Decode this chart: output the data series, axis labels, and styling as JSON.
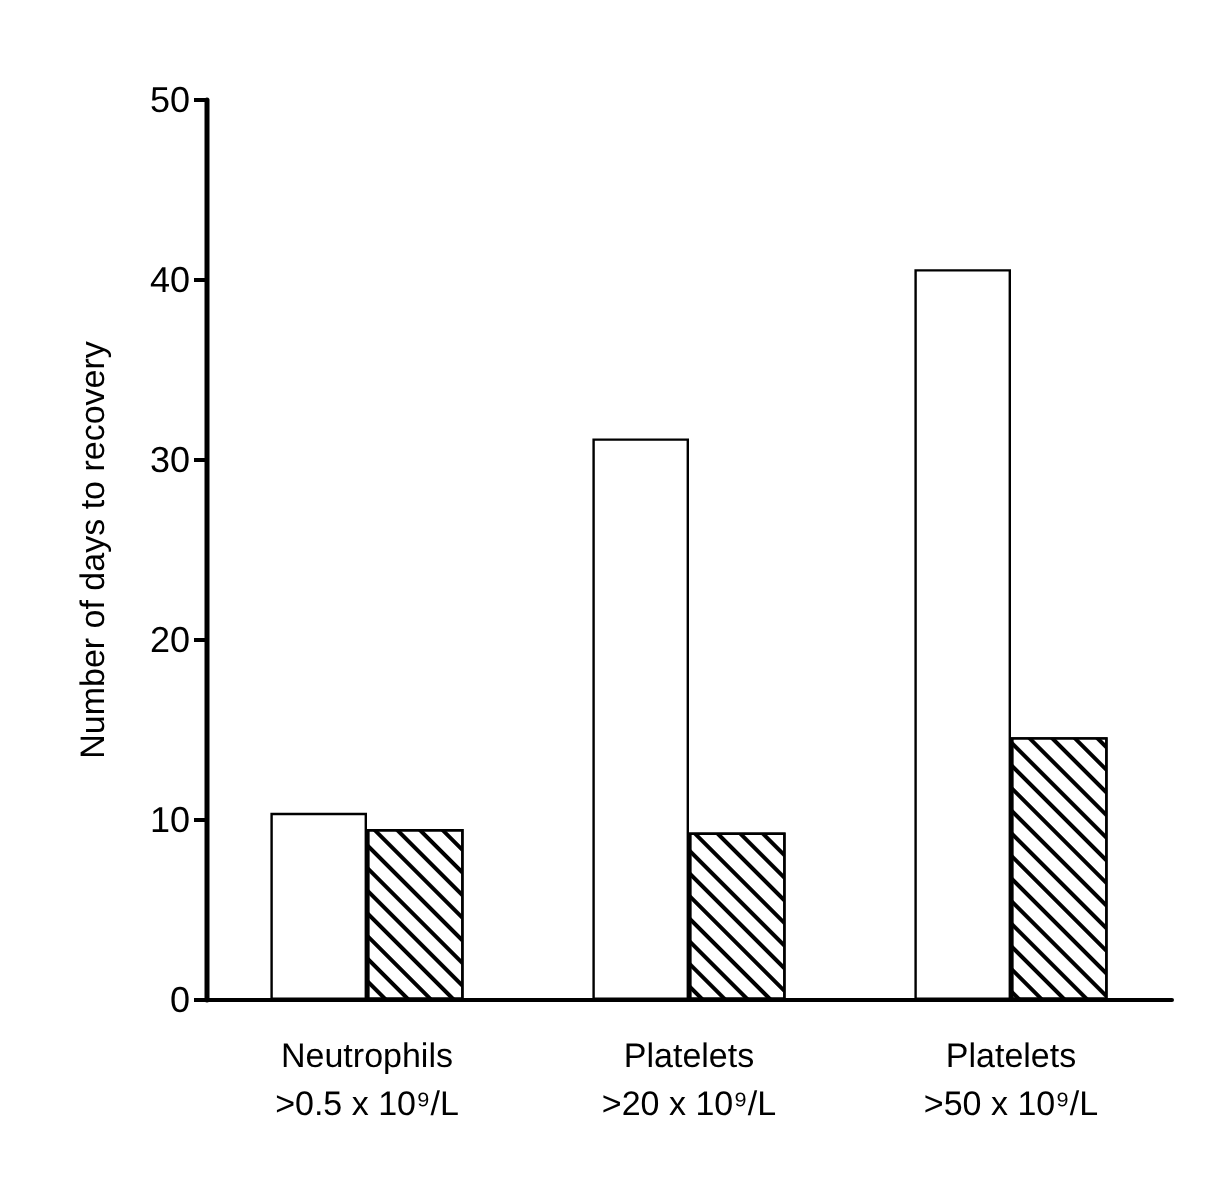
{
  "chart_data": {
    "type": "bar",
    "ylabel": "Number of days to recovery",
    "categories": [
      "Neutrophils\n>0.5 x 10⁹/L",
      "Platelets\n>20 x 10⁹/L",
      "Platelets\n>50 x 10⁹/L"
    ],
    "series": [
      {
        "color": "#ffffff",
        "values": [
          10.4,
          31.2,
          40.6
        ]
      },
      {
        "color": "#000000",
        "values": [
          9.5,
          9.3,
          14.6
        ]
      }
    ],
    "ylim": [
      0,
      50
    ],
    "yticks": [
      0,
      10,
      20,
      30,
      40,
      50
    ],
    "grid": false
  }
}
